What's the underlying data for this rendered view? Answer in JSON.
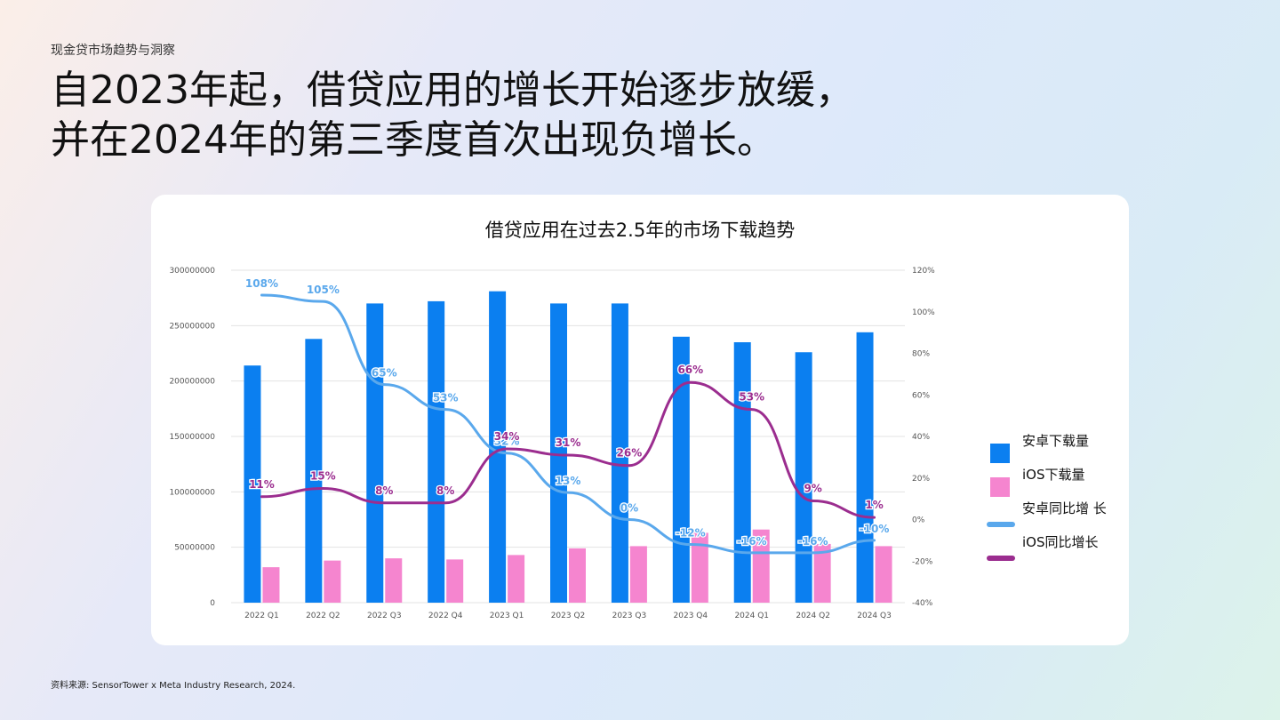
{
  "page": {
    "kicker": "现金贷市场趋势与洞察",
    "headline_line1": "自2023年起，借贷应用的增长开始逐步放缓，",
    "headline_line2": "并在2024年的第三季度首次出现负增长。",
    "source": "资料来源: SensorTower x Meta Industry Research, 2024."
  },
  "chart_data": {
    "type": "bar",
    "title": "借贷应用在过去2.5年的市场下载趋势",
    "categories": [
      "2022 Q1",
      "2022 Q2",
      "2022 Q3",
      "2022 Q4",
      "2023 Q1",
      "2023 Q2",
      "2023 Q3",
      "2023 Q4",
      "2024 Q1",
      "2024 Q2",
      "2024 Q3"
    ],
    "y_left": {
      "ticks": [
        "300000000",
        "250000000",
        "200000000",
        "150000000",
        "100000000",
        "50000000",
        "0"
      ],
      "range": [
        0,
        300000000
      ]
    },
    "y_right": {
      "ticks": [
        "120%",
        "100%",
        "80%",
        "60%",
        "40%",
        "20%",
        "0%",
        "-20%",
        "-40%"
      ],
      "range": [
        -40,
        120
      ]
    },
    "series": [
      {
        "name": "安卓下载量",
        "type": "bar",
        "axis": "left",
        "color": "#0b7ff0",
        "values": [
          214000000,
          238000000,
          270000000,
          272000000,
          281000000,
          270000000,
          270000000,
          240000000,
          235000000,
          226000000,
          244000000
        ]
      },
      {
        "name": "iOS下载量",
        "type": "bar",
        "axis": "left",
        "color": "#f585cf",
        "values": [
          32000000,
          38000000,
          40000000,
          39000000,
          43000000,
          49000000,
          51000000,
          63000000,
          66000000,
          53000000,
          51000000
        ]
      },
      {
        "name": "安卓同比增 长",
        "type": "line",
        "axis": "right",
        "color": "#5aa8ec",
        "values": [
          108,
          105,
          65,
          53,
          32,
          13,
          0,
          -12,
          -16,
          -16,
          -10
        ],
        "labels": [
          "108%",
          "105%",
          "65%",
          "53%",
          "32%",
          "13%",
          "0%",
          "-12%",
          "-16%",
          "-16%",
          "-10%"
        ]
      },
      {
        "name": "iOS同比增长",
        "type": "line",
        "axis": "right",
        "color": "#9b2d8f",
        "values": [
          11,
          15,
          8,
          8,
          34,
          31,
          26,
          66,
          53,
          9,
          1
        ],
        "labels": [
          "11%",
          "15%",
          "8%",
          "8%",
          "34%",
          "31%",
          "26%",
          "66%",
          "53%",
          "9%",
          "1%"
        ]
      }
    ],
    "legend_position": "right",
    "grid": true
  }
}
